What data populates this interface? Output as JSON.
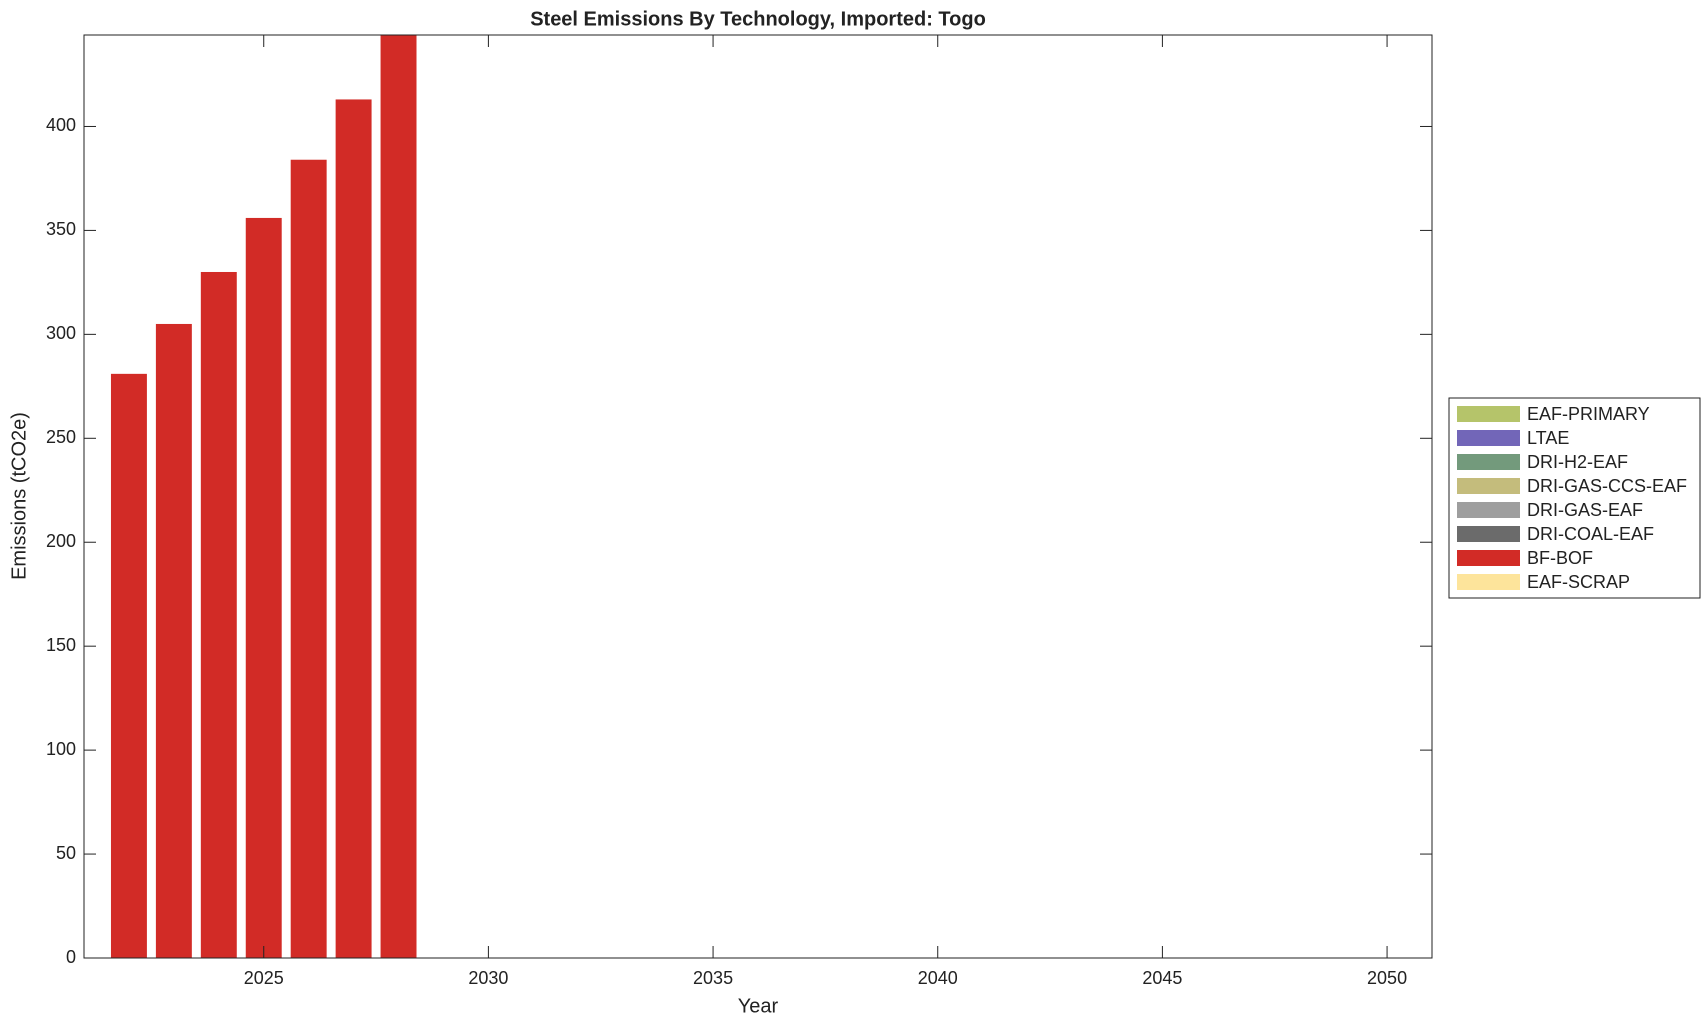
{
  "chart_data": {
    "type": "stacked-bar",
    "title": "Steel Emissions By Technology, Imported: Togo",
    "x_label": "Year",
    "y_label": "Emissions (tCO2e)",
    "x": [
      2022,
      2023,
      2024,
      2025,
      2026,
      2027,
      2028
    ],
    "series": [
      {
        "name": "EAF-PRIMARY",
        "color": "#b5c46a",
        "values": [
          0,
          0,
          0,
          0,
          0,
          0,
          0
        ]
      },
      {
        "name": "LTAE",
        "color": "#7266b8",
        "values": [
          0,
          0,
          0,
          0,
          0,
          0,
          0
        ]
      },
      {
        "name": "DRI-H2-EAF",
        "color": "#739a7c",
        "values": [
          0,
          0,
          0,
          0,
          0,
          0,
          0
        ]
      },
      {
        "name": "DRI-GAS-CCS-EAF",
        "color": "#c4bc7c",
        "values": [
          0,
          0,
          0,
          0,
          0,
          0,
          0
        ]
      },
      {
        "name": "DRI-GAS-EAF",
        "color": "#9e9e9e",
        "values": [
          0,
          0,
          0,
          0,
          0,
          0,
          0
        ]
      },
      {
        "name": "DRI-COAL-EAF",
        "color": "#6b6b6b",
        "values": [
          0,
          0,
          0,
          0,
          0,
          0,
          0
        ]
      },
      {
        "name": "BF-BOF",
        "color": "#d22b26",
        "values": [
          281,
          305,
          330,
          356,
          384,
          413,
          444
        ]
      },
      {
        "name": "EAF-SCRAP",
        "color": "#fde49b",
        "values": [
          0,
          0,
          0,
          0,
          0,
          0,
          0
        ]
      }
    ],
    "xlim": [
      2021,
      2051
    ],
    "xticks": [
      2025,
      2030,
      2035,
      2040,
      2045,
      2050
    ],
    "ylim": [
      0,
      444
    ],
    "yticks": [
      0,
      50,
      100,
      150,
      200,
      250,
      300,
      350,
      400
    ],
    "legend": "right"
  }
}
